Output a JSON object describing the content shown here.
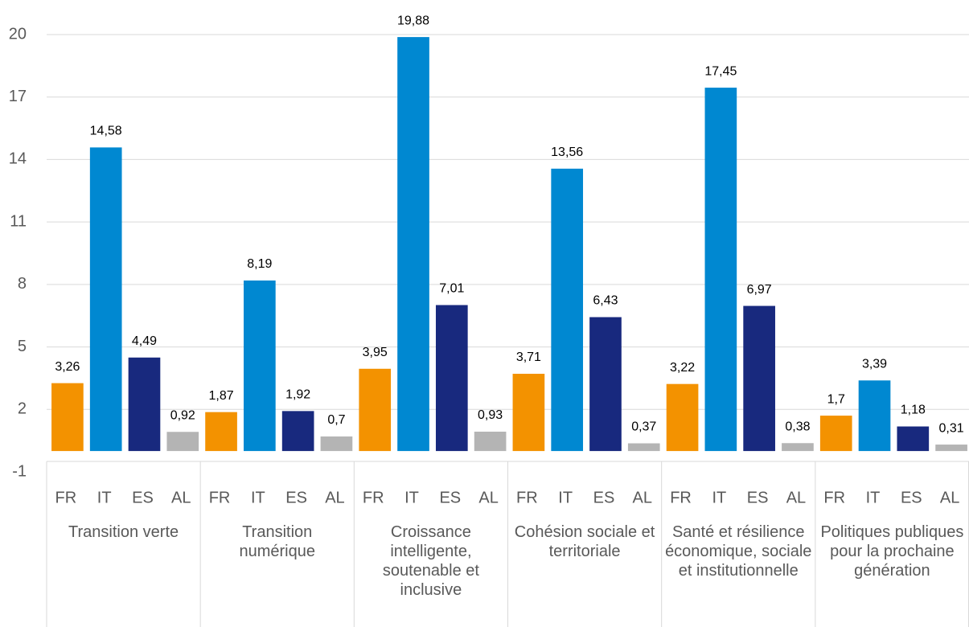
{
  "chart_data": {
    "type": "bar",
    "categories": [
      "Transition verte",
      "Transition numérique",
      "Croissance intelligente, soutenable et inclusive",
      "Cohésion sociale et territoriale",
      "Santé et résilience économique, sociale et institutionnelle",
      "Politiques publiques pour la prochaine génération"
    ],
    "series": [
      {
        "name": "FR",
        "color": "#f39200",
        "values": [
          3.26,
          1.87,
          3.95,
          3.71,
          3.22,
          1.7
        ],
        "value_labels": [
          "3,26",
          "1,87",
          "3,95",
          "3,71",
          "3,22",
          "1,7"
        ]
      },
      {
        "name": "IT",
        "color": "#0088d1",
        "values": [
          14.58,
          8.19,
          19.88,
          13.56,
          17.45,
          3.39
        ],
        "value_labels": [
          "14,58",
          "8,19",
          "19,88",
          "13,56",
          "17,45",
          "3,39"
        ]
      },
      {
        "name": "ES",
        "color": "#18297e",
        "values": [
          4.49,
          1.92,
          7.01,
          6.43,
          6.97,
          1.18
        ],
        "value_labels": [
          "4,49",
          "1,92",
          "7,01",
          "6,43",
          "6,97",
          "1,18"
        ]
      },
      {
        "name": "AL",
        "color": "#b4b4b4",
        "values": [
          0.92,
          0.7,
          0.93,
          0.37,
          0.38,
          0.31
        ],
        "value_labels": [
          "0,92",
          "0,7",
          "0,93",
          "0,37",
          "0,38",
          "0,31"
        ]
      }
    ],
    "ylim": [
      -1,
      20
    ],
    "yticks": [
      -1,
      2,
      5,
      8,
      11,
      14,
      17,
      20
    ],
    "grid": true
  }
}
